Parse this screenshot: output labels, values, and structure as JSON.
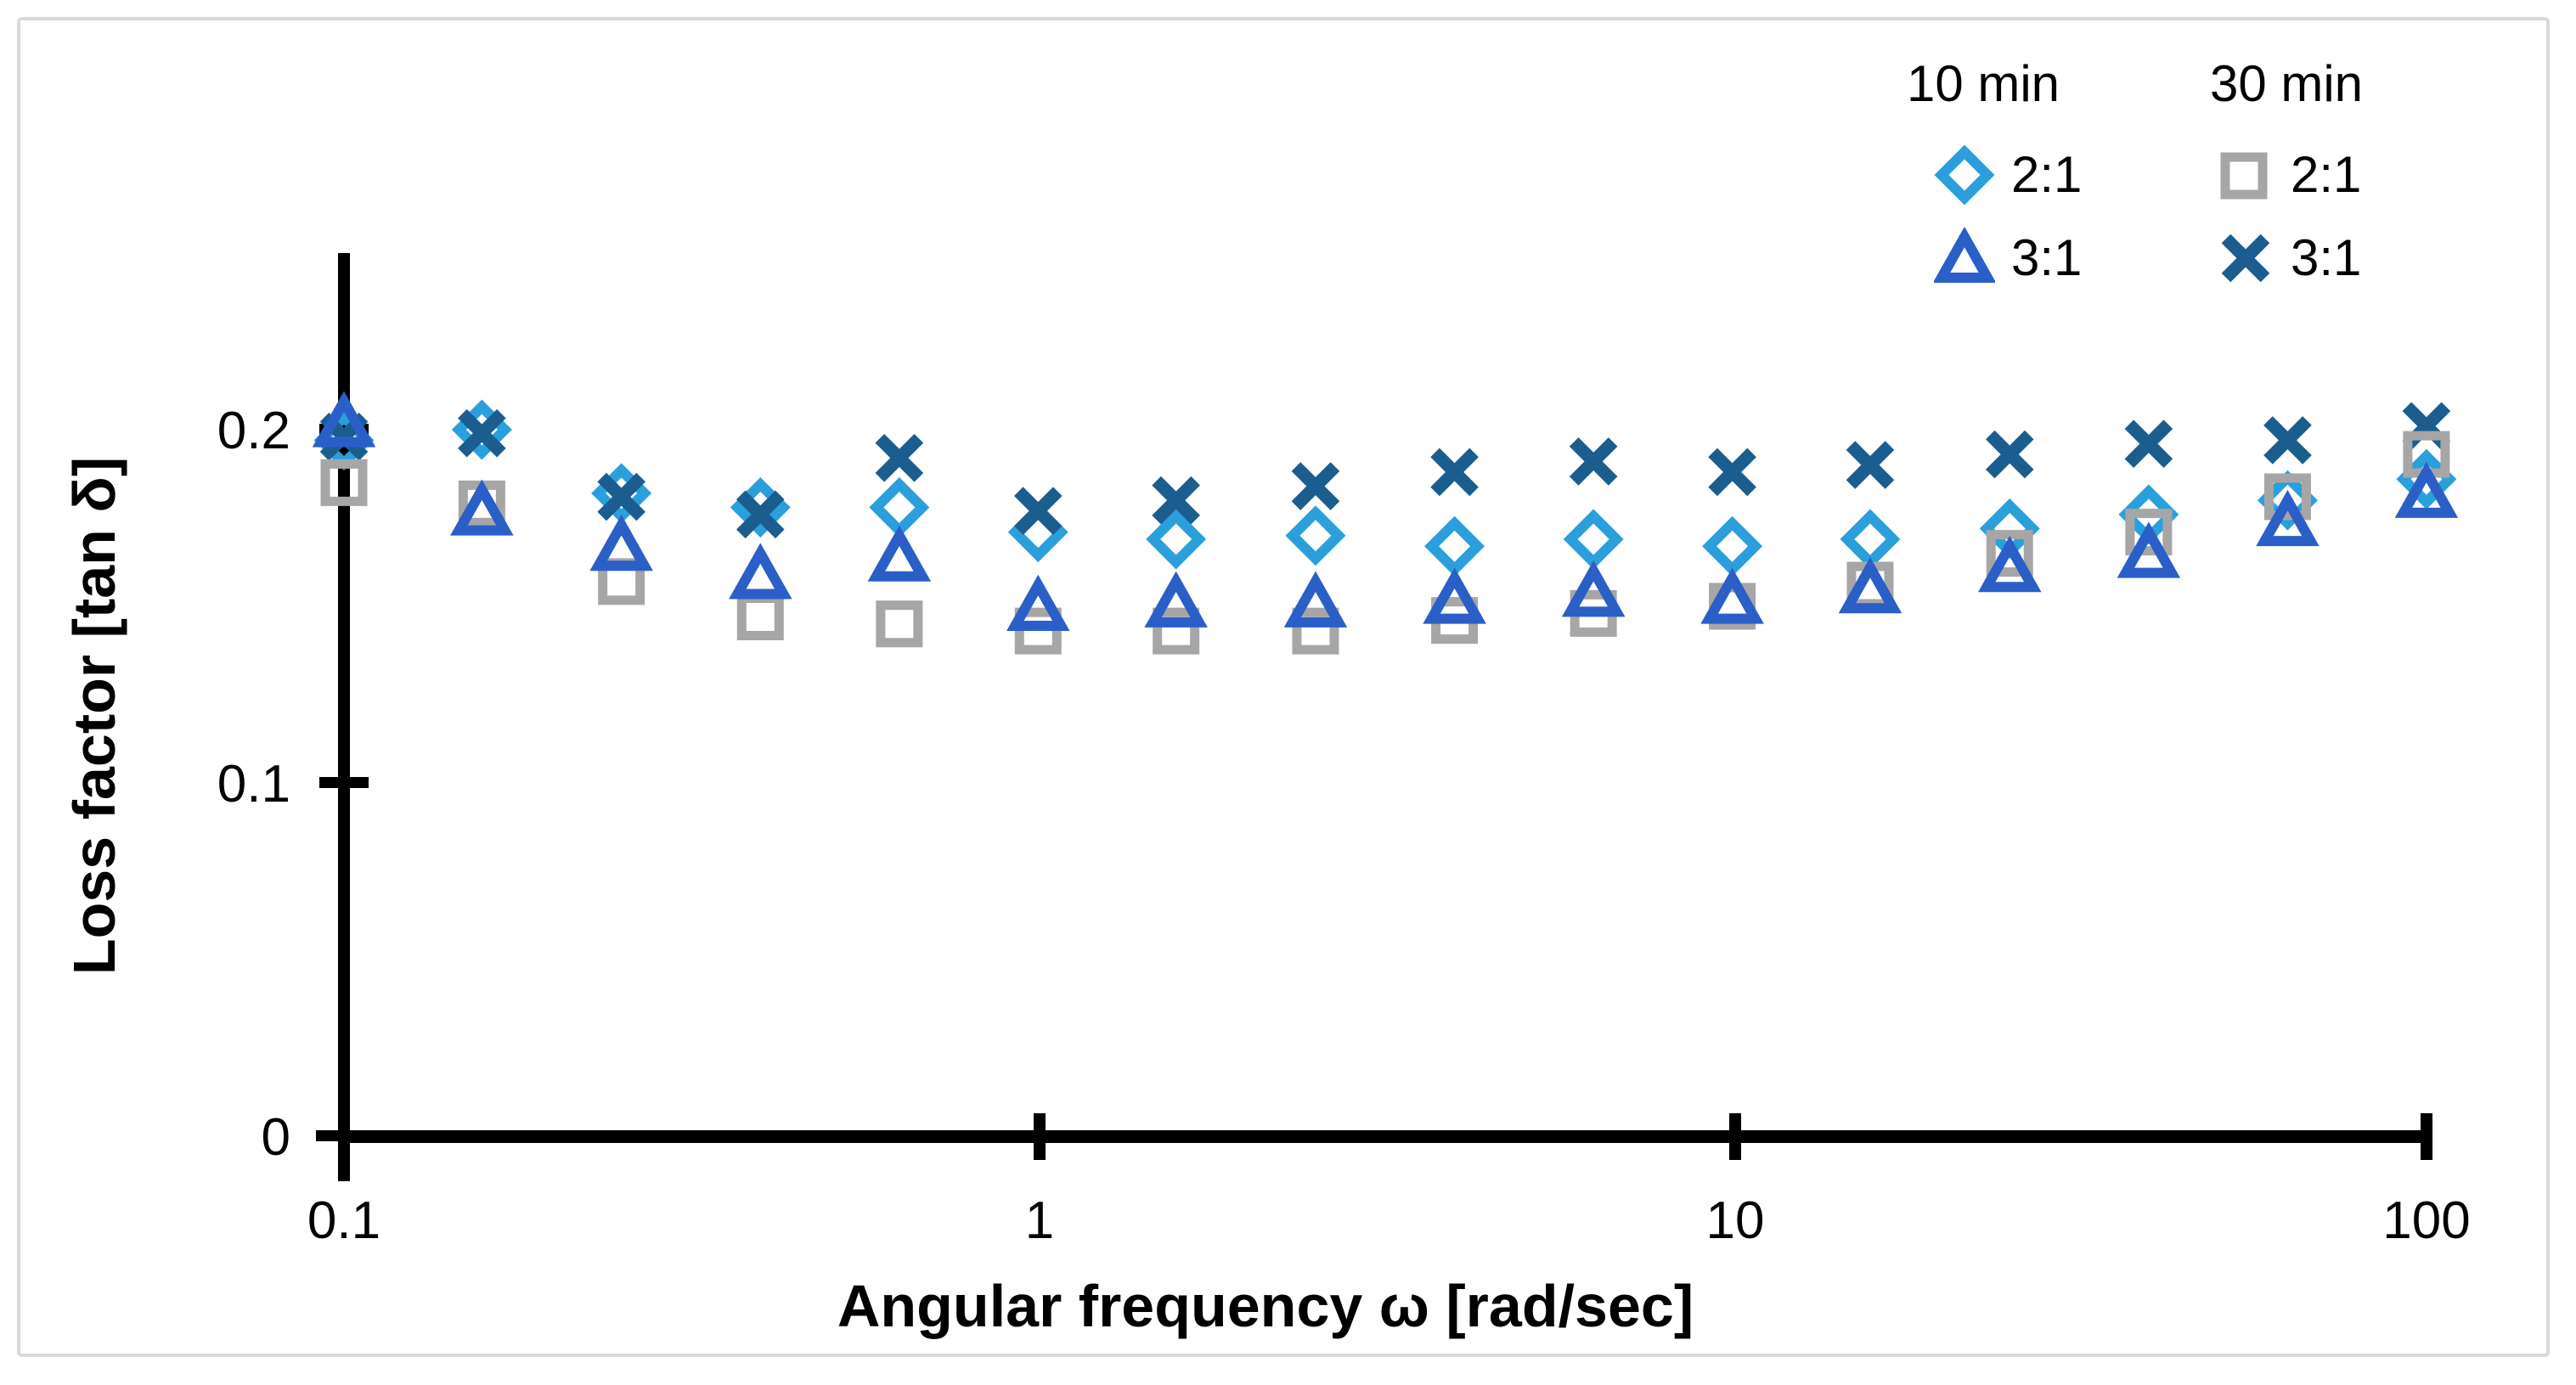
{
  "chart_data": {
    "type": "scatter",
    "title": "",
    "xlabel": "Angular frequency ω [rad/sec]",
    "ylabel": "Loss factor [tan δ]",
    "x_scale": "log",
    "xlim": [
      0.1,
      100
    ],
    "ylim": [
      0,
      0.25
    ],
    "grid": false,
    "x_ticks": [
      "0.1",
      "1",
      "10",
      "100"
    ],
    "x_tick_values": [
      0.1,
      1,
      10,
      100
    ],
    "y_ticks": [
      "0",
      "0.1",
      "0.2"
    ],
    "y_tick_values": [
      0,
      0.1,
      0.2
    ],
    "x": [
      0.1,
      0.158,
      0.251,
      0.398,
      0.631,
      1,
      1.58,
      2.51,
      3.98,
      6.31,
      10,
      15.8,
      25.1,
      39.8,
      63.1,
      100
    ],
    "series": [
      {
        "name": "10 min 2:1",
        "group": "10 min",
        "ratio": "2:1",
        "marker": "diamond",
        "color": "#2B9FDC",
        "values": [
          0.197,
          0.2,
          0.182,
          0.178,
          0.178,
          0.171,
          0.169,
          0.17,
          0.167,
          0.169,
          0.167,
          0.169,
          0.172,
          0.176,
          0.18,
          0.186
        ]
      },
      {
        "name": "30 min 3:1",
        "group": "30 min",
        "ratio": "3:1",
        "marker": "x",
        "color": "#1C5D8F",
        "values": [
          0.198,
          0.199,
          0.181,
          0.176,
          0.192,
          0.177,
          0.18,
          0.184,
          0.188,
          0.191,
          0.188,
          0.19,
          0.193,
          0.196,
          0.197,
          0.201
        ]
      },
      {
        "name": "30 min 2:1",
        "group": "30 min",
        "ratio": "2:1",
        "marker": "square",
        "color": "#A6A6A6",
        "values": [
          0.185,
          0.179,
          0.157,
          0.147,
          0.145,
          0.143,
          0.143,
          0.143,
          0.146,
          0.148,
          0.15,
          0.156,
          0.165,
          0.171,
          0.181,
          0.193
        ]
      },
      {
        "name": "10 min 3:1",
        "group": "10 min",
        "ratio": "3:1",
        "marker": "triangle",
        "color": "#2B5FC7",
        "values": [
          0.202,
          0.177,
          0.167,
          0.159,
          0.164,
          0.15,
          0.151,
          0.151,
          0.152,
          0.154,
          0.152,
          0.155,
          0.161,
          0.165,
          0.174,
          0.182
        ]
      }
    ],
    "legend": {
      "position": "top-right",
      "columns": [
        {
          "header": "10 min",
          "items": [
            {
              "label": "2:1",
              "marker": "diamond",
              "color": "#2B9FDC"
            },
            {
              "label": "3:1",
              "marker": "triangle",
              "color": "#2B5FC7"
            }
          ]
        },
        {
          "header": "30 min",
          "items": [
            {
              "label": "2:1",
              "marker": "square",
              "color": "#A6A6A6"
            },
            {
              "label": "3:1",
              "marker": "x",
              "color": "#1C5D8F"
            }
          ]
        }
      ]
    },
    "colors": {
      "axis": "#000000",
      "frame_border": "#D9D9D9",
      "background": "#FFFFFF"
    }
  }
}
